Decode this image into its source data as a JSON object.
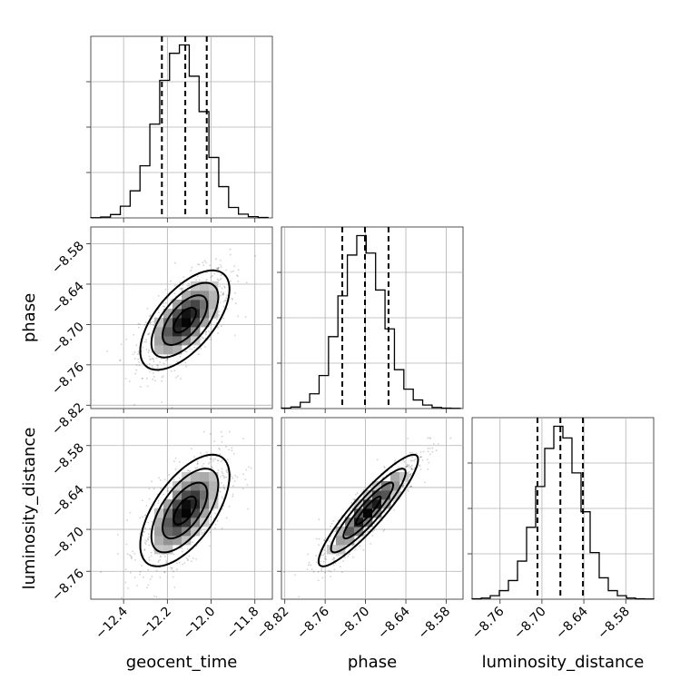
{
  "chart_data": {
    "type": "corner",
    "parameters": [
      "geocent_time",
      "phase",
      "luminosity_distance"
    ],
    "labels": {
      "geocent_time": "geocent_time",
      "phase": "phase",
      "luminosity_distance": "luminosity_distance"
    },
    "grid": true,
    "quantiles": [
      0.16,
      0.5,
      0.84
    ],
    "ranges": {
      "geocent_time": [
        -12.55,
        -11.72
      ],
      "phase": [
        -8.825,
        -8.555
      ],
      "luminosity_distance": [
        -8.8,
        -8.54
      ]
    },
    "ticks": {
      "geocent_time": [
        "-12.4",
        "-12.2",
        "-12.0",
        "-11.8"
      ],
      "phase": [
        "-8.82",
        "-8.76",
        "-8.70",
        "-8.64",
        "-8.58"
      ],
      "luminosity_distance": [
        "-8.76",
        "-8.70",
        "-8.64",
        "-8.58"
      ]
    },
    "histograms": {
      "geocent_time": {
        "bin_edges": [
          -12.55,
          -12.505,
          -12.46,
          -12.415,
          -12.37,
          -12.325,
          -12.28,
          -12.235,
          -12.19,
          -12.145,
          -12.1,
          -12.055,
          -12.01,
          -11.965,
          -11.92,
          -11.875,
          -11.83,
          -11.785,
          -11.74
        ],
        "counts": [
          0.5,
          2,
          8,
          28,
          65,
          125,
          225,
          330,
          395,
          415,
          340,
          255,
          145,
          75,
          25,
          9,
          3,
          1
        ],
        "quantile_values": [
          -12.225,
          -12.118,
          -12.02
        ]
      },
      "phase": {
        "bin_edges": [
          -8.825,
          -8.811,
          -8.797,
          -8.783,
          -8.769,
          -8.755,
          -8.741,
          -8.727,
          -8.713,
          -8.699,
          -8.685,
          -8.671,
          -8.657,
          -8.643,
          -8.629,
          -8.615,
          -8.601,
          -8.587,
          -8.573,
          -8.559
        ],
        "counts": [
          1,
          4,
          16,
          38,
          85,
          185,
          290,
          395,
          445,
          400,
          305,
          205,
          100,
          50,
          22,
          9,
          3,
          1,
          0.5
        ],
        "quantile_values": [
          -8.7345,
          -8.7008,
          -8.6658
        ]
      },
      "luminosity_distance": {
        "bin_edges": [
          -8.8,
          -8.787,
          -8.774,
          -8.761,
          -8.748,
          -8.735,
          -8.722,
          -8.709,
          -8.696,
          -8.683,
          -8.67,
          -8.657,
          -8.644,
          -8.631,
          -8.618,
          -8.605,
          -8.592,
          -8.579,
          -8.566,
          -8.553,
          -8.54
        ],
        "counts": [
          1,
          3,
          9,
          22,
          48,
          98,
          185,
          290,
          388,
          445,
          415,
          325,
          225,
          120,
          55,
          22,
          9,
          3,
          1,
          0.5
        ],
        "quantile_values": [
          -8.7064,
          -8.6736,
          -8.6413
        ]
      }
    },
    "scatter_panels": [
      {
        "x": "geocent_time",
        "y": "phase",
        "center": [
          -12.12,
          -8.6935
        ],
        "sigma": [
          0.102,
          0.037
        ],
        "rho": 0.62
      },
      {
        "x": "geocent_time",
        "y": "luminosity_distance",
        "center": [
          -12.12,
          -8.673
        ],
        "sigma": [
          0.102,
          0.04
        ],
        "rho": 0.62
      },
      {
        "x": "phase",
        "y": "luminosity_distance",
        "center": [
          -8.6958,
          -8.673
        ],
        "sigma": [
          0.037,
          0.04
        ],
        "rho": 0.91
      }
    ]
  }
}
